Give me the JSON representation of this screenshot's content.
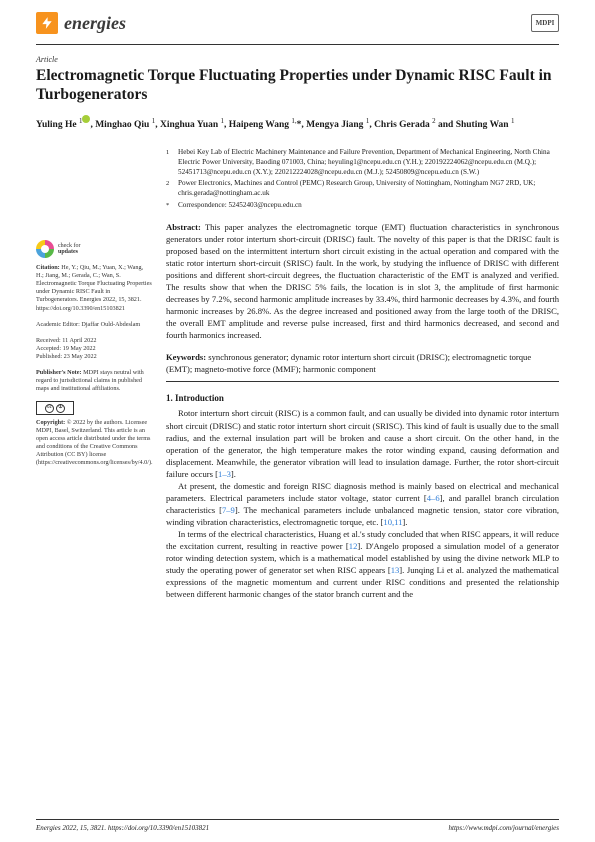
{
  "journal": {
    "name": "energies",
    "publisher_badge": "MDPI"
  },
  "article": {
    "type": "Article",
    "title": "Electromagnetic Torque Fluctuating Properties under Dynamic RISC Fault in Turbogenerators",
    "authors_html": "Yuling He <sup>1</sup><span class='orcid'></span>, Minghao Qiu <sup>1</sup>, Xinghua Yuan <sup>1</sup>, Haipeng Wang <sup>1,</sup>*, Mengya Jiang <sup>1</sup>, Chris Gerada <sup>2</sup> and Shuting Wan <sup>1</sup>"
  },
  "affiliations": [
    {
      "idx": "1",
      "text": "Hebei Key Lab of Electric Machinery Maintenance and Failure Prevention, Department of Mechanical Engineering, North China Electric Power University, Baoding 071003, China; heyuling1@ncepu.edu.cn (Y.H.); 220192224062@ncepu.edu.cn (M.Q.); 52451713@ncepu.edu.cn (X.Y.); 220212224028@ncepu.edu.cn (M.J.); 52450809@ncepu.edu.cn (S.W.)"
    },
    {
      "idx": "2",
      "text": "Power Electronics, Machines and Control (PEMC) Research Group, University of Nottingham, Nottingham NG7 2RD, UK; chris.gerada@nottingham.ac.uk"
    },
    {
      "idx": "*",
      "text": "Correspondence: 52452403@ncepu.edu.cn"
    }
  ],
  "abstract": {
    "label": "Abstract:",
    "text": "This paper analyzes the electromagnetic torque (EMT) fluctuation characteristics in synchronous generators under rotor interturn short-circuit (DRISC) fault. The novelty of this paper is that the DRISC fault is proposed based on the intermittent interturn short circuit existing in the actual operation and compared with the static rotor interturn short-circuit (SRISC) fault. In the work, by studying the influence of DRISC with different positions and different short-circuit degrees, the fluctuation characteristic of the EMT is analyzed and verified. The results show that when the DRISC 5% fails, the location is in slot 3, the amplitude of first harmonic decreases by 7.2%, second harmonic amplitude increases by 33.4%, third harmonic decreases by 4.3%, and fourth harmonic increases by 26.8%. As the degree increased and positioned away from the large tooth of the DRISC, the overall EMT amplitude and reverse pulse increased, first and third harmonics decreased, and second and fourth harmonics increased."
  },
  "keywords": {
    "label": "Keywords:",
    "text": "synchronous generator; dynamic rotor interturn short circuit (DRISC); electromagnetic torque (EMT); magneto-motive force (MMF); harmonic component"
  },
  "intro": {
    "heading": "1. Introduction",
    "p1": "Rotor interturn short circuit (RISC) is a common fault, and can usually be divided into dynamic rotor interturn short circuit (DRISC) and static rotor interturn short circuit (SRISC). This kind of fault is usually due to the small radius, and the external insulation part will be broken and cause a short circuit. On the other hand, in the operation of the generator, the high temperature makes the rotor winding expand, causing deformation and displacement. Meanwhile, the generator vibration will lead to insulation damage. Further, the rotor short-circuit failure occurs [",
    "c1": "1–3",
    "p1b": "].",
    "p2": "At present, the domestic and foreign RISC diagnosis method is mainly based on electrical and mechanical parameters. Electrical parameters include stator voltage, stator current [",
    "c2": "4–6",
    "p2b": "], and parallel branch circulation characteristics [",
    "c3": "7–9",
    "p2c": "]. The mechanical parameters include unbalanced magnetic tension, stator core vibration, winding vibration characteristics, electromagnetic torque, etc. [",
    "c4": "10,11",
    "p2d": "].",
    "p3": "In terms of the electrical characteristics, Huang et al.'s study concluded that when RISC appears, it will reduce the excitation current, resulting in reactive power [",
    "c5": "12",
    "p3b": "]. D'Angelo proposed a simulation model of a generator rotor winding detection system, which is a mathematical model established by using the divine network MLP to study the operating power of generator set when RISC appears [",
    "c6": "13",
    "p3c": "]. Junqing Li et al. analyzed the mathematical expressions of the magnetic momentum and current under RISC conditions and presented the relationship between different harmonic changes of the stator branch current and the"
  },
  "sidebar": {
    "check": {
      "l1": "check for",
      "l2": "updates"
    },
    "citation": {
      "label": "Citation:",
      "text": "He, Y.; Qiu, M.; Yuan, X.; Wang, H.; Jiang, M.; Gerada, C.; Wan, S. Electromagnetic Torque Fluctuating Properties under Dynamic RISC Fault in Turbogenerators. Energies 2022, 15, 3821. https://doi.org/10.3390/en15103821"
    },
    "editor": {
      "label": "Academic Editor:",
      "text": "Djaffar Ould-Abdeslam"
    },
    "dates": {
      "received": "Received: 11 April 2022",
      "accepted": "Accepted: 19 May 2022",
      "published": "Published: 23 May 2022"
    },
    "pubnote": {
      "label": "Publisher's Note:",
      "text": "MDPI stays neutral with regard to jurisdictional claims in published maps and institutional affiliations."
    },
    "copyright": {
      "label": "Copyright:",
      "text": "© 2022 by the authors. Licensee MDPI, Basel, Switzerland. This article is an open access article distributed under the terms and conditions of the Creative Commons Attribution (CC BY) license (https://creativecommons.org/licenses/by/4.0/)."
    }
  },
  "footer": {
    "left": "Energies 2022, 15, 3821. https://doi.org/10.3390/en15103821",
    "right": "https://www.mdpi.com/journal/energies"
  },
  "colors": {
    "accent": "#f7931e",
    "link": "#2e7dd7",
    "text": "#1a1a1a"
  }
}
